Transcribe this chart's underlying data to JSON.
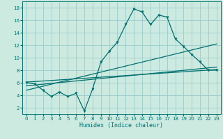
{
  "xlabel": "Humidex (Indice chaleur)",
  "bg_color": "#cceadf",
  "grid_color": "#99cccc",
  "line_color": "#007070",
  "xlim": [
    -0.5,
    23.5
  ],
  "ylim": [
    1,
    19
  ],
  "xticks": [
    0,
    1,
    2,
    3,
    4,
    5,
    6,
    7,
    8,
    9,
    10,
    11,
    12,
    13,
    14,
    15,
    16,
    17,
    18,
    19,
    20,
    21,
    22,
    23
  ],
  "yticks": [
    2,
    4,
    6,
    8,
    10,
    12,
    14,
    16,
    18
  ],
  "series1_x": [
    0,
    1,
    2,
    3,
    4,
    5,
    6,
    7,
    8,
    9,
    10,
    11,
    12,
    13,
    14,
    15,
    16,
    17,
    18,
    19,
    20,
    21,
    22,
    23
  ],
  "series1_y": [
    6.0,
    5.8,
    4.8,
    3.8,
    4.5,
    3.8,
    4.3,
    1.5,
    5.0,
    9.3,
    11.0,
    12.5,
    15.3,
    17.8,
    17.3,
    15.3,
    16.8,
    16.5,
    13.0,
    11.8,
    10.5,
    9.3,
    8.0,
    8.0
  ],
  "line1_x": [
    0,
    23
  ],
  "line1_y": [
    6.1,
    8.1
  ],
  "line2_x": [
    0,
    23
  ],
  "line2_y": [
    4.8,
    12.2
  ],
  "line3_x": [
    0,
    23
  ],
  "line3_y": [
    5.5,
    8.5
  ],
  "marker_style": "v",
  "marker_size": 2.5,
  "line_width": 0.9,
  "xlabel_fontsize": 6,
  "tick_fontsize": 5
}
